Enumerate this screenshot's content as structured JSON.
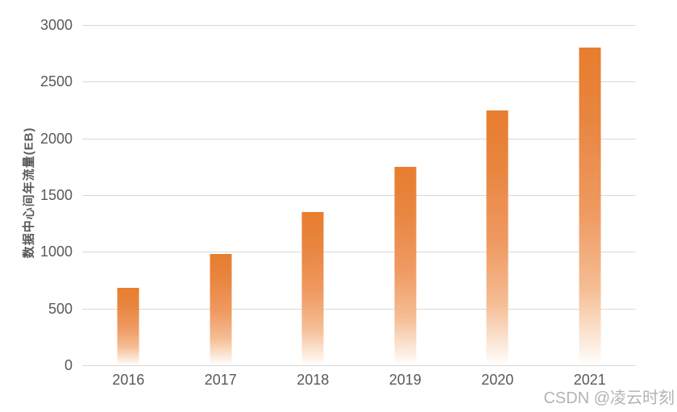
{
  "chart_data": {
    "type": "bar",
    "categories": [
      "2016",
      "2017",
      "2018",
      "2019",
      "2020",
      "2021"
    ],
    "values": [
      680,
      980,
      1350,
      1750,
      2250,
      2800
    ],
    "title": "",
    "xlabel": "",
    "ylabel": "数据中心间年流量(EB)",
    "ylim": [
      0,
      3000
    ],
    "yticks": [
      "0",
      "500",
      "1000",
      "1500",
      "2000",
      "2500",
      "3000"
    ],
    "grid": true,
    "legend": "none",
    "bar_color_top": "#e87d2e",
    "bar_color_bottom": "#ffffff",
    "gridline_color": "#d9d9d9",
    "tick_label_color": "#595959"
  },
  "watermark": {
    "text": "CSDN @凌云时刻",
    "color": "#b3b3b3"
  }
}
